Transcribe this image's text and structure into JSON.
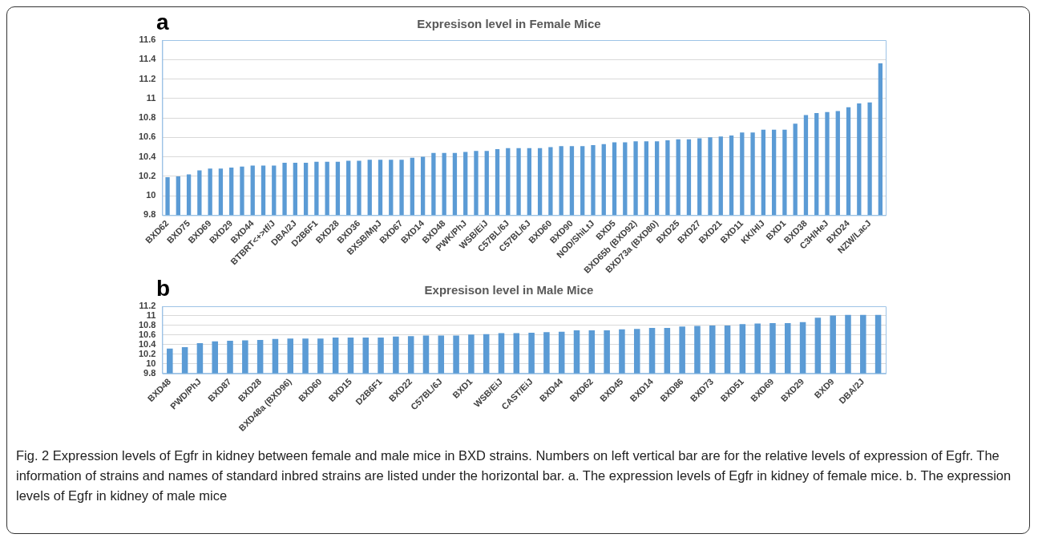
{
  "chart_data": [
    {
      "type": "bar",
      "title": "Expresison level in Female Mice",
      "annotations": [
        "a"
      ],
      "categories": [
        "BXD62",
        null,
        "BXD75",
        null,
        "BXD69",
        null,
        "BXD29",
        null,
        "BXD44",
        null,
        "BTBRT<+>tf/J",
        null,
        "DBA/2J",
        null,
        "D2B6F1",
        null,
        "BXD28",
        null,
        "BXD36",
        null,
        "BXSB/MpJ",
        null,
        "BXD67",
        null,
        "BXD14",
        null,
        "BXD48",
        null,
        "PWK/PhJ",
        null,
        "WSB/EiJ",
        null,
        "C57BL/6J",
        null,
        "C57BL/6J",
        null,
        "BXD60",
        null,
        "BXD90",
        null,
        "NOD/ShiLtJ",
        null,
        "BXD5",
        null,
        "BXD65b (BXD92)",
        null,
        "BXD73a (BXD80)",
        null,
        "BXD25",
        null,
        "BXD27",
        null,
        "BXD21",
        null,
        "BXD11",
        null,
        "KK/HlJ",
        null,
        "BXD1",
        null,
        "BXD38",
        null,
        "C3H/HeJ",
        null,
        "BXD24",
        null,
        "NZW/LacJ",
        null
      ],
      "values": [
        10.19,
        10.2,
        10.22,
        10.26,
        10.28,
        10.28,
        10.29,
        10.3,
        10.31,
        10.31,
        10.31,
        10.34,
        10.34,
        10.34,
        10.35,
        10.35,
        10.35,
        10.36,
        10.36,
        10.37,
        10.37,
        10.37,
        10.37,
        10.39,
        10.4,
        10.44,
        10.44,
        10.44,
        10.45,
        10.46,
        10.46,
        10.48,
        10.49,
        10.49,
        10.49,
        10.49,
        10.5,
        10.51,
        10.51,
        10.51,
        10.52,
        10.53,
        10.55,
        10.55,
        10.56,
        10.56,
        10.56,
        10.57,
        10.58,
        10.58,
        10.59,
        10.6,
        10.61,
        10.62,
        10.65,
        10.65,
        10.68,
        10.68,
        10.68,
        10.74,
        10.83,
        10.85,
        10.86,
        10.87,
        10.91,
        10.95,
        10.96,
        11.36
      ],
      "color": "#5b9bd5",
      "ylim": [
        9.8,
        11.6
      ],
      "yticks": [
        9.8,
        10,
        10.2,
        10.4,
        10.6,
        10.8,
        11,
        11.2,
        11.4,
        11.6
      ],
      "grid": "y",
      "legend": false
    },
    {
      "type": "bar",
      "title": "Expresison level in Male Mice",
      "annotations": [
        "b",
        "Fig. 2 Expression levels of Egfr in kidney between female and male mice in BXD strains. Numbers on left vertical bar are for the relative levels of expression of Egfr. The information of strains and names of standard inbred strains are listed under the horizontal bar. a. The expression levels of Egfr in kidney of female mice. b. The expression levels of Egfr in kidney of male mice"
      ],
      "categories": [
        "BXD48",
        null,
        "PWD/PhJ",
        null,
        "BXD87",
        null,
        "BXD28",
        null,
        "BXD48a (BXD96)",
        null,
        "BXD60",
        null,
        "BXD15",
        null,
        "D2B6F1",
        null,
        "BXD22",
        null,
        "C57BL/6J",
        null,
        "BXD1",
        null,
        "WSB/EiJ",
        null,
        "CAST/EiJ",
        null,
        "BXD44",
        null,
        "BXD62",
        null,
        "BXD45",
        null,
        "BXD14",
        null,
        "BXD86",
        null,
        "BXD73",
        null,
        "BXD51",
        null,
        "BXD69",
        null,
        "BXD29",
        null,
        "BXD9",
        null,
        "DBA/2J",
        null
      ],
      "values": [
        10.32,
        10.35,
        10.43,
        10.47,
        10.48,
        10.49,
        10.5,
        10.52,
        10.53,
        10.53,
        10.53,
        10.55,
        10.55,
        10.55,
        10.55,
        10.57,
        10.58,
        10.59,
        10.59,
        10.59,
        10.61,
        10.62,
        10.64,
        10.64,
        10.65,
        10.66,
        10.67,
        10.7,
        10.7,
        10.7,
        10.72,
        10.73,
        10.75,
        10.75,
        10.78,
        10.79,
        10.8,
        10.8,
        10.83,
        10.84,
        10.85,
        10.85,
        10.87,
        10.96,
        11.01,
        11.02,
        11.02,
        11.02
      ],
      "color": "#5b9bd5",
      "ylim": [
        9.8,
        11.2
      ],
      "yticks": [
        9.8,
        10,
        10.2,
        10.4,
        10.6,
        10.8,
        11,
        11.2
      ],
      "grid": "y",
      "legend": false
    }
  ]
}
